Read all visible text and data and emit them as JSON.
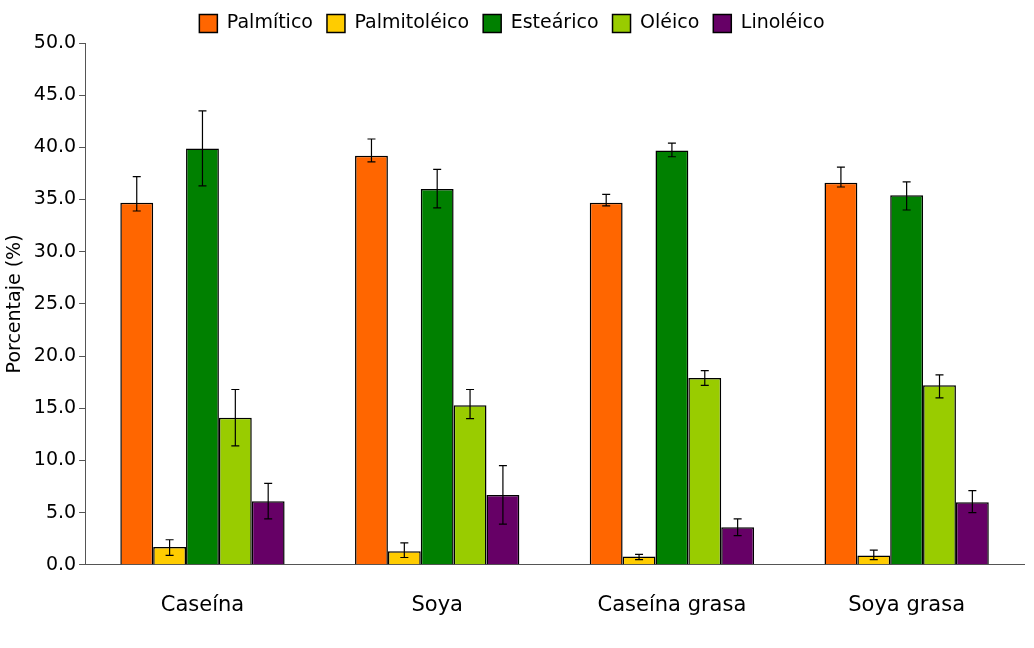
{
  "chart_data": {
    "type": "bar",
    "ylabel": "Porcentaje (%)",
    "categories": [
      "Caseína",
      "Soya",
      "Caseína grasa",
      "Soya grasa"
    ],
    "series": [
      {
        "name": "Palmítico",
        "color": "#ff6600",
        "values": [
          34.7,
          39.2,
          34.7,
          36.6
        ],
        "errors": [
          [
            33.9,
            37.2
          ],
          [
            38.6,
            40.8
          ],
          [
            34.4,
            35.5
          ],
          [
            36.2,
            38.1
          ]
        ]
      },
      {
        "name": "Palmitoléico",
        "color": "#ffcc00",
        "values": [
          1.7,
          1.3,
          0.8,
          0.9
        ],
        "errors": [
          [
            0.9,
            2.4
          ],
          [
            0.7,
            2.1
          ],
          [
            0.5,
            1.0
          ],
          [
            0.5,
            1.4
          ]
        ]
      },
      {
        "name": "Esteárico",
        "color": "#008000",
        "values": [
          39.9,
          36.0,
          39.7,
          35.4
        ],
        "errors": [
          [
            36.3,
            43.5
          ],
          [
            34.2,
            37.9
          ],
          [
            39.1,
            40.4
          ],
          [
            34.0,
            36.7
          ]
        ]
      },
      {
        "name": "Oléico",
        "color": "#99cc00",
        "values": [
          14.1,
          15.3,
          17.9,
          17.2
        ],
        "errors": [
          [
            11.4,
            16.8
          ],
          [
            14.0,
            16.8
          ],
          [
            17.2,
            18.6
          ],
          [
            16.0,
            18.2
          ]
        ]
      },
      {
        "name": "Linoléico",
        "color": "#660066",
        "values": [
          6.1,
          6.7,
          3.6,
          6.0
        ],
        "errors": [
          [
            4.4,
            7.8
          ],
          [
            3.9,
            9.5
          ],
          [
            2.8,
            4.4
          ],
          [
            5.0,
            7.1
          ]
        ]
      }
    ],
    "ylim": [
      0,
      50
    ],
    "yticks": [
      {
        "value": 0,
        "label": "0.0"
      },
      {
        "value": 5,
        "label": "5.0"
      },
      {
        "value": 10,
        "label": "10.0"
      },
      {
        "value": 15,
        "label": "15.0"
      },
      {
        "value": 20,
        "label": "20.0"
      },
      {
        "value": 25,
        "label": "25.0"
      },
      {
        "value": 30,
        "label": "30.0"
      },
      {
        "value": 35,
        "label": "35.0"
      },
      {
        "value": 40,
        "label": "40.0"
      },
      {
        "value": 45,
        "label": "45.0"
      },
      {
        "value": 50,
        "label": "50.0"
      }
    ],
    "grid": false,
    "legend": "top"
  }
}
